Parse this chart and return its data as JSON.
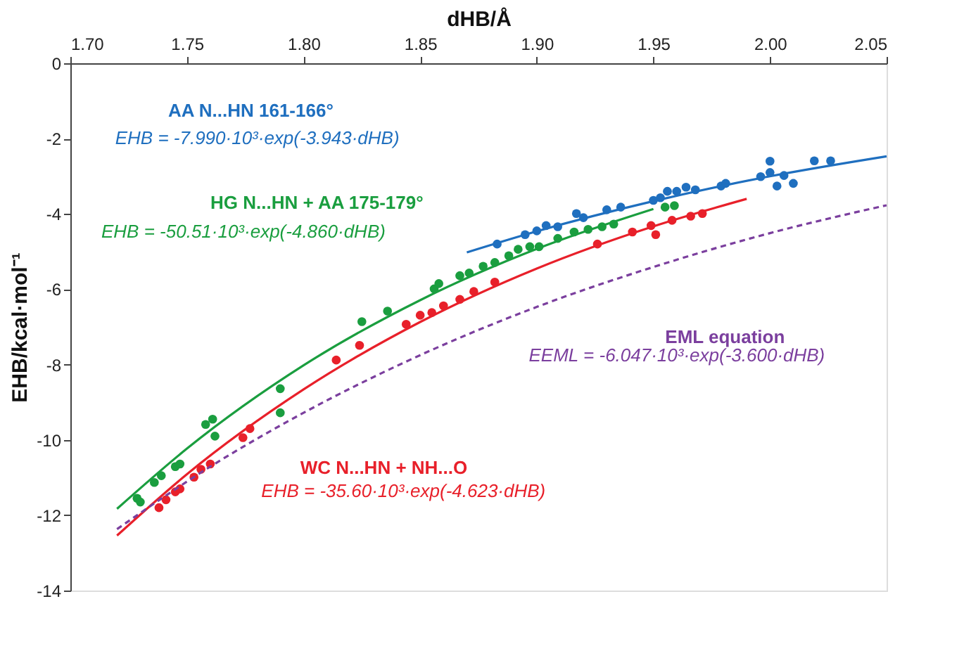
{
  "chart_data": {
    "type": "scatter",
    "xlabel": "dHB/Å",
    "ylabel": "EHB/kcal·mol⁻¹",
    "xlim": [
      1.7,
      2.05
    ],
    "xticks": [
      {
        "value": 1.7,
        "label": "1.70"
      },
      {
        "value": 1.75,
        "label": "1.75"
      },
      {
        "value": 1.8,
        "label": "1.80"
      },
      {
        "value": 1.85,
        "label": "1.85"
      },
      {
        "value": 1.9,
        "label": "1.90"
      },
      {
        "value": 1.95,
        "label": "1.95"
      },
      {
        "value": 2.0,
        "label": "2.00"
      },
      {
        "value": 2.05,
        "label": "2.05"
      }
    ],
    "ylim": [
      -14,
      0
    ],
    "yticks": [
      0,
      -2,
      -4,
      -6,
      -8,
      -10,
      -12,
      -14
    ],
    "grid": false,
    "series": [
      {
        "marker": "circle",
        "color": "#1f6fbf",
        "x": [
          1.883,
          1.895,
          1.9,
          1.904,
          1.909,
          1.917,
          1.92,
          1.93,
          1.936,
          1.95,
          1.953,
          1.956,
          1.96,
          1.964,
          1.968,
          1.979,
          1.981,
          1.996,
          2.0,
          2.0,
          2.003,
          2.006,
          2.01,
          2.019,
          2.026
        ],
        "values": [
          -4.8,
          -4.55,
          -4.45,
          -4.31,
          -4.34,
          -3.99,
          -4.1,
          -3.89,
          -3.82,
          -3.64,
          -3.57,
          -3.4,
          -3.4,
          -3.29,
          -3.36,
          -3.26,
          -3.19,
          -3.01,
          -2.6,
          -2.9,
          -3.26,
          -2.98,
          -3.19,
          -2.59,
          -2.59
        ]
      },
      {
        "type": "line",
        "marker": "none",
        "line_style": "solid",
        "color": "#1f6fbf",
        "x": [
          1.87,
          1.9,
          1.95,
          2.0,
          2.05
        ],
        "values": [
          -5.02,
          -4.46,
          -3.66,
          -3.0,
          -2.47
        ]
      },
      {
        "marker": "circle",
        "color": "#1a9e3f",
        "x": [
          1.7286,
          1.73,
          1.736,
          1.739,
          1.745,
          1.747,
          1.758,
          1.761,
          1.762,
          1.79,
          1.79,
          1.825,
          1.836,
          1.856,
          1.858,
          1.867,
          1.871,
          1.877,
          1.882,
          1.888,
          1.892,
          1.896,
          1.897,
          1.901,
          1.909,
          1.916,
          1.922,
          1.928,
          1.933,
          1.955,
          1.959
        ],
        "values": [
          -11.55,
          -11.65,
          -11.13,
          -10.95,
          -10.71,
          -10.64,
          -9.59,
          -9.45,
          -9.9,
          -8.64,
          -9.28,
          -6.86,
          -6.58,
          -5.99,
          -5.85,
          -5.64,
          -5.57,
          -5.39,
          -5.29,
          -5.11,
          -4.94,
          null,
          -4.87,
          -4.87,
          -4.65,
          -4.48,
          -4.41,
          -4.34,
          -4.27,
          -3.82,
          -3.78
        ]
      },
      {
        "type": "line",
        "marker": "none",
        "line_style": "solid",
        "color": "#1a9e3f",
        "x": [
          1.72,
          1.75,
          1.8,
          1.85,
          1.9,
          1.95
        ],
        "values": [
          -11.83,
          -10.23,
          -8.02,
          -6.29,
          -4.93,
          -3.87
        ]
      },
      {
        "marker": "circle",
        "color": "#e8202a",
        "x": [
          1.738,
          1.741,
          1.745,
          1.747,
          1.753,
          1.756,
          1.76,
          1.774,
          1.777,
          1.814,
          1.824,
          1.844,
          1.85,
          1.855,
          1.86,
          1.867,
          1.873,
          1.882,
          1.926,
          1.941,
          1.949,
          1.951,
          1.958,
          1.966,
          1.971
        ],
        "values": [
          -11.8,
          -11.59,
          -11.38,
          -11.3,
          -10.99,
          -10.78,
          -10.64,
          -9.94,
          -9.7,
          -7.88,
          -7.49,
          -6.93,
          -6.69,
          -6.62,
          -6.44,
          -6.27,
          -6.06,
          -5.81,
          -4.8,
          -4.48,
          -4.31,
          -4.55,
          -4.17,
          -4.06,
          -3.99
        ]
      },
      {
        "type": "line",
        "marker": "none",
        "line_style": "solid",
        "color": "#e8202a",
        "x": [
          1.72,
          1.75,
          1.8,
          1.85,
          1.9,
          1.95,
          1.99
        ],
        "values": [
          -12.54,
          -10.91,
          -8.66,
          -6.87,
          -5.45,
          -4.33,
          -3.6
        ]
      },
      {
        "type": "line",
        "marker": "none",
        "line_style": "dashed",
        "color": "#7b3f9e",
        "x": [
          1.72,
          1.76,
          1.8,
          1.85,
          1.9,
          1.95,
          2.0,
          2.05
        ],
        "values": [
          -12.37,
          -10.71,
          -9.28,
          -7.75,
          -6.47,
          -5.41,
          -4.51,
          -3.77
        ]
      }
    ],
    "annotations": [
      "AA N...HN 161-166°",
      "EHB = -7.990·10³·exp(-3.943·dHB)",
      "HG N...HN + AA 175-179°",
      "EHB = -50.51·10³·exp(-4.860·dHB)",
      "WC N...HN + NH...O",
      "EHB = -35.60·10³·exp(-4.623·dHB)",
      "EML equation",
      "EEML = -6.047·10³·exp(-3.600·dHB)"
    ]
  }
}
